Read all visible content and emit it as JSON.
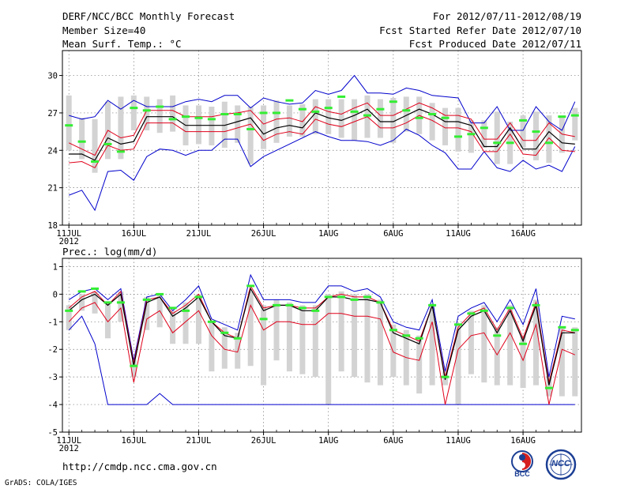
{
  "header": {
    "title": "DERF/NCC/BCC Monthly Forecast",
    "member_size": "Member Size=40",
    "variable_temp": "Mean Surf. Temp.: °C",
    "period": "For 2012/07/11-2012/08/19",
    "started_refer": "Fcst Started Refer Date 2012/07/10",
    "produced": "Fcst Produced Date 2012/07/11"
  },
  "footer": {
    "url": "http://cmdp.ncc.cma.gov.cn",
    "grads": "GrADS: COLA/IGES",
    "logo_bcc_text": "BCC",
    "logo_ncc_text": "NCC"
  },
  "colors": {
    "blue": "#0000cc",
    "red": "#e0001a",
    "black": "#000000",
    "green": "#33ee33",
    "gray": "#d3d3d3",
    "grid": "#7a7a7a"
  },
  "chart_data": [
    {
      "id": "temperature",
      "type": "line",
      "title": "Mean Surf. Temp.: °C",
      "ylim": [
        18,
        32
      ],
      "yticks": [
        18,
        21,
        24,
        27,
        30
      ],
      "xlim": [
        0.5,
        40.5
      ],
      "xticks": [
        {
          "day": 1,
          "label": "11JUL",
          "sub": "2012"
        },
        {
          "day": 6,
          "label": "16JUL"
        },
        {
          "day": 11,
          "label": "21JUL"
        },
        {
          "day": 16,
          "label": "26JUL"
        },
        {
          "day": 21,
          "label": "1AUG"
        },
        {
          "day": 26,
          "label": "6AUG"
        },
        {
          "day": 31,
          "label": "11AUG"
        },
        {
          "day": 36,
          "label": "16AUG"
        }
      ],
      "ensemble_mean": [
        23.7,
        23.7,
        23.2,
        25.0,
        24.5,
        24.7,
        26.7,
        26.7,
        26.7,
        26.0,
        26.0,
        26.0,
        26.0,
        26.3,
        26.6,
        25.3,
        25.8,
        26.0,
        25.8,
        27.0,
        26.6,
        26.4,
        26.8,
        27.3,
        26.3,
        26.3,
        26.8,
        27.3,
        26.9,
        26.3,
        26.3,
        26.0,
        24.3,
        24.3,
        25.8,
        24.1,
        24.1,
        25.5,
        24.6,
        24.5
      ],
      "upper_bound": [
        26.8,
        26.5,
        26.7,
        28.0,
        27.3,
        28.0,
        27.5,
        27.5,
        27.5,
        27.9,
        28.1,
        27.9,
        28.4,
        28.4,
        27.4,
        28.2,
        27.9,
        27.7,
        27.8,
        28.8,
        28.5,
        28.8,
        30.0,
        28.6,
        28.6,
        28.5,
        29.0,
        28.8,
        28.4,
        28.3,
        28.2,
        26.2,
        26.2,
        27.5,
        25.6,
        25.6,
        27.5,
        26.3,
        25.6,
        27.9
      ],
      "lower_bound": [
        20.4,
        20.8,
        19.2,
        22.3,
        22.4,
        21.6,
        23.5,
        24.1,
        24.0,
        23.6,
        24.0,
        24.0,
        24.9,
        24.9,
        22.7,
        23.5,
        24.0,
        24.5,
        25.0,
        25.5,
        25.1,
        24.8,
        24.8,
        24.7,
        24.4,
        24.8,
        25.7,
        25.2,
        24.4,
        23.8,
        22.5,
        22.5,
        23.9,
        22.6,
        22.3,
        23.2,
        22.5,
        22.8,
        22.3,
        24.3
      ],
      "member_high": [
        24.6,
        24.1,
        23.6,
        25.6,
        25.0,
        25.2,
        27.2,
        27.2,
        27.2,
        26.7,
        26.7,
        26.7,
        26.9,
        27.0,
        27.2,
        26.1,
        26.5,
        26.6,
        26.3,
        27.5,
        27.1,
        26.9,
        27.4,
        27.8,
        26.8,
        26.8,
        27.3,
        27.8,
        27.4,
        26.8,
        26.8,
        26.5,
        24.9,
        24.9,
        26.2,
        24.8,
        24.8,
        26.2,
        25.3,
        25.1
      ],
      "member_low": [
        23.0,
        23.1,
        22.6,
        24.4,
        24.0,
        24.1,
        26.2,
        26.2,
        26.2,
        25.5,
        25.5,
        25.5,
        25.5,
        25.8,
        26.1,
        24.8,
        25.3,
        25.5,
        25.3,
        26.5,
        26.1,
        25.9,
        26.3,
        26.7,
        25.8,
        25.8,
        26.2,
        26.8,
        26.4,
        25.8,
        25.8,
        25.5,
        23.9,
        23.9,
        25.3,
        23.7,
        23.6,
        25.0,
        24.0,
        23.9
      ],
      "observed": [
        26.0,
        24.7,
        23.1,
        24.5,
        23.9,
        27.4,
        27.2,
        27.5,
        26.5,
        26.7,
        26.6,
        26.5,
        26.9,
        26.9,
        25.7,
        27.0,
        27.0,
        28.0,
        27.3,
        27.1,
        27.4,
        28.3,
        27.1,
        26.8,
        27.3,
        27.9,
        27.2,
        26.6,
        26.9,
        26.6,
        25.1,
        25.3,
        25.8,
        24.6,
        24.6,
        26.4,
        25.5,
        24.6,
        26.7,
        26.8
      ],
      "box_high": [
        28.4,
        26.6,
        26.5,
        27.9,
        28.3,
        28.4,
        28.3,
        28.1,
        28.4,
        27.6,
        27.6,
        27.5,
        27.9,
        27.6,
        27.5,
        27.6,
        28.0,
        27.6,
        27.7,
        28.1,
        28.1,
        28.1,
        28.1,
        28.4,
        28.1,
        28.2,
        28.3,
        28.3,
        27.8,
        27.4,
        27.4,
        26.4,
        26.4,
        27.1,
        26.3,
        26.8,
        27.1,
        26.8,
        26.8,
        27.4
      ],
      "box_low": [
        24.0,
        23.3,
        22.2,
        23.3,
        23.3,
        25.6,
        25.6,
        25.4,
        25.5,
        24.4,
        24.5,
        24.4,
        24.2,
        24.6,
        22.9,
        24.1,
        24.6,
        25.1,
        25.1,
        25.3,
        25.3,
        25.0,
        24.8,
        25.0,
        25.0,
        24.6,
        25.5,
        25.3,
        24.8,
        24.4,
        23.9,
        23.8,
        24.2,
        22.9,
        22.9,
        24.2,
        23.2,
        23.0,
        23.8,
        24.8
      ]
    },
    {
      "id": "precipitation",
      "type": "line",
      "title": "Prec.: log(mm/d)",
      "ylim": [
        -5,
        1.3
      ],
      "yticks": [
        -5,
        -4,
        -3,
        -2,
        -1,
        0,
        1
      ],
      "xlim": [
        0.5,
        40.5
      ],
      "xticks": [
        {
          "day": 1,
          "label": "11JUL",
          "sub": "2012"
        },
        {
          "day": 6,
          "label": "16JUL"
        },
        {
          "day": 11,
          "label": "21JUL"
        },
        {
          "day": 16,
          "label": "26JUL"
        },
        {
          "day": 21,
          "label": "1AUG"
        },
        {
          "day": 26,
          "label": "6AUG"
        },
        {
          "day": 31,
          "label": "11AUG"
        },
        {
          "day": 36,
          "label": "16AUG"
        }
      ],
      "ensemble_mean": [
        -0.6,
        -0.2,
        0.0,
        -0.4,
        0.0,
        -2.6,
        -0.3,
        -0.1,
        -0.8,
        -0.5,
        -0.1,
        -1.0,
        -1.5,
        -1.6,
        0.2,
        -0.6,
        -0.4,
        -0.4,
        -0.6,
        -0.6,
        -0.1,
        -0.1,
        -0.2,
        -0.2,
        -0.3,
        -1.4,
        -1.6,
        -1.8,
        -0.4,
        -3.1,
        -1.3,
        -0.8,
        -0.6,
        -1.4,
        -0.6,
        -1.7,
        -0.4,
        -3.3,
        -1.4,
        -1.4
      ],
      "upper_bound": [
        -0.2,
        0.1,
        0.2,
        -0.2,
        0.2,
        -2.4,
        -0.1,
        0.0,
        -0.6,
        -0.2,
        0.3,
        -0.9,
        -1.1,
        -1.3,
        0.7,
        -0.2,
        -0.2,
        -0.2,
        -0.3,
        -0.3,
        0.3,
        0.3,
        0.1,
        0.2,
        -0.1,
        -1.0,
        -1.2,
        -1.3,
        -0.2,
        -2.8,
        -0.8,
        -0.5,
        -0.3,
        -1.0,
        -0.2,
        -1.1,
        0.2,
        -3.0,
        -0.8,
        -0.9
      ],
      "lower_bound": [
        -1.3,
        -0.8,
        -1.8,
        -4.0,
        -4.0,
        -4.0,
        -4.0,
        -3.6,
        -4.0,
        -4.0,
        -4.0,
        -4.0,
        -4.0,
        -4.0,
        -4.0,
        -4.0,
        -4.0,
        -4.0,
        -4.0,
        -4.0,
        -4.0,
        -4.0,
        -4.0,
        -4.0,
        -4.0,
        -4.0,
        -4.0,
        -4.0,
        -4.0,
        -4.0,
        -4.0,
        -4.0,
        -4.0,
        -4.0,
        -4.0,
        -4.0,
        -4.0,
        -4.0,
        -4.0,
        -4.0
      ],
      "member_high": [
        -0.5,
        -0.1,
        0.1,
        -0.4,
        0.1,
        -2.5,
        -0.2,
        -0.1,
        -0.7,
        -0.4,
        0.0,
        -1.0,
        -1.4,
        -1.6,
        0.3,
        -0.5,
        -0.4,
        -0.4,
        -0.5,
        -0.5,
        -0.1,
        0.0,
        -0.1,
        -0.1,
        -0.3,
        -1.3,
        -1.5,
        -1.7,
        -0.4,
        -3.0,
        -1.2,
        -0.7,
        -0.5,
        -1.3,
        -0.5,
        -1.6,
        -0.3,
        -3.2,
        -1.3,
        -1.4
      ],
      "member_low": [
        -1.0,
        -0.5,
        -0.3,
        -1.0,
        -0.5,
        -3.2,
        -0.9,
        -0.6,
        -1.4,
        -1.0,
        -0.6,
        -1.5,
        -2.0,
        -2.1,
        -0.4,
        -1.3,
        -1.0,
        -1.0,
        -1.1,
        -1.1,
        -0.7,
        -0.7,
        -0.8,
        -0.8,
        -0.9,
        -2.1,
        -2.3,
        -2.4,
        -1.0,
        -4.0,
        -2.0,
        -1.5,
        -1.4,
        -2.2,
        -1.4,
        -2.4,
        -1.1,
        -4.0,
        -2.0,
        -2.2
      ],
      "observed": [
        -0.6,
        0.1,
        0.2,
        -0.3,
        -0.3,
        -2.6,
        -0.2,
        0.0,
        -0.5,
        -0.6,
        -0.1,
        -1.0,
        -1.4,
        -1.6,
        0.3,
        -0.9,
        -0.4,
        -0.4,
        -0.5,
        -0.6,
        -0.1,
        -0.1,
        -0.2,
        -0.1,
        -0.3,
        -1.3,
        -1.5,
        -1.6,
        -0.4,
        -3.0,
        -1.1,
        -0.7,
        -0.6,
        -1.5,
        -0.5,
        -1.8,
        -0.4,
        -3.4,
        -1.2,
        -1.3
      ],
      "box_high": [
        -0.4,
        0.0,
        0.1,
        -0.3,
        0.1,
        -2.4,
        -0.1,
        0.0,
        -0.6,
        -0.3,
        0.0,
        -1.0,
        -1.2,
        -1.4,
        0.1,
        -0.4,
        -0.2,
        -0.3,
        -0.4,
        -0.4,
        0.0,
        0.1,
        0.0,
        0.0,
        -0.2,
        -1.1,
        -1.3,
        -1.5,
        -0.4,
        -2.8,
        -1.1,
        -0.6,
        -0.4,
        -1.2,
        -0.4,
        -1.5,
        -0.2,
        -3.0,
        -1.2,
        -1.2
      ],
      "box_low": [
        -1.3,
        -0.6,
        -0.7,
        -1.6,
        -1.0,
        -3.0,
        -1.3,
        -1.2,
        -1.8,
        -1.8,
        -1.8,
        -2.8,
        -2.7,
        -2.7,
        -2.6,
        -3.3,
        -2.4,
        -2.8,
        -2.9,
        -3.0,
        -4.0,
        -2.8,
        -3.0,
        -3.2,
        -3.3,
        -3.0,
        -3.3,
        -3.6,
        -3.3,
        -3.3,
        -4.0,
        -2.9,
        -3.2,
        -3.3,
        -3.3,
        -3.4,
        -3.3,
        -3.7,
        -3.7,
        -3.7
      ]
    }
  ]
}
